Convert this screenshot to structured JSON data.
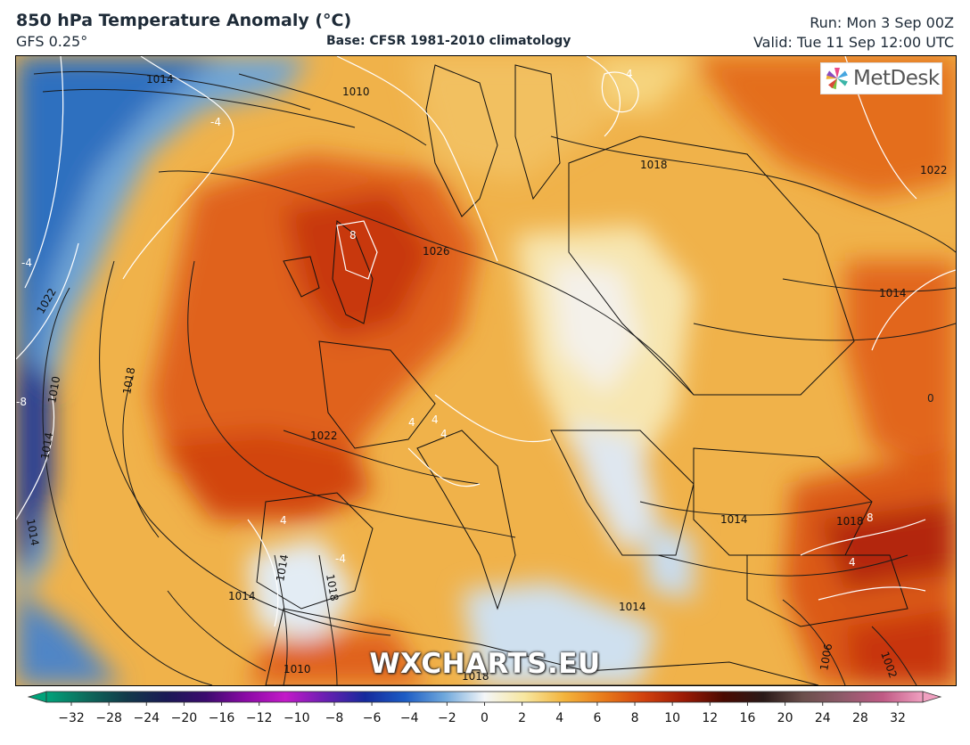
{
  "header": {
    "title": "850 hPa Temperature Anomaly (°C)",
    "model": "GFS 0.25°",
    "base": "Base: CFSR 1981-2010 climatology",
    "run": "Run: Mon 3 Sep 00Z",
    "valid": "Valid: Tue 11 Sep 12:00 UTC"
  },
  "logo": {
    "text": "MetDesk",
    "icon": "metdesk-pinwheel-logo"
  },
  "watermark": "WXCHARTS.EU",
  "map": {
    "isobar_labels": [
      "1014",
      "1010",
      "1026",
      "1022",
      "1018",
      "1014",
      "1022",
      "1018",
      "1014",
      "1022",
      "1018",
      "1014",
      "1010",
      "1014",
      "1018",
      "1014",
      "1014",
      "1006",
      "1002",
      "1010",
      "1014",
      "1018"
    ],
    "anomaly_labels": [
      "-4",
      "-4",
      "8",
      "4",
      "4",
      "4",
      "4",
      "4",
      "8",
      "4",
      "0",
      "-8",
      "-4"
    ]
  },
  "colorbar": {
    "ticks": [
      "−32",
      "−28",
      "−24",
      "−20",
      "−16",
      "−12",
      "−10",
      "−8",
      "−6",
      "−4",
      "−2",
      "0",
      "2",
      "4",
      "6",
      "8",
      "10",
      "12",
      "16",
      "20",
      "24",
      "28",
      "32"
    ],
    "colors": [
      "#00a37a",
      "#0d6b5c",
      "#123a4a",
      "#1a1a55",
      "#3b0b6e",
      "#8a0aa5",
      "#c31ac8",
      "#6a1fb2",
      "#152a9c",
      "#1c5cc4",
      "#6fa8dc",
      "#f4f6f8",
      "#f7e7a0",
      "#f3b43c",
      "#e87a1a",
      "#d1410d",
      "#9c1a05",
      "#4a0a02",
      "#2a1a18",
      "#6b4f4c",
      "#8f5a6a",
      "#c05a85",
      "#f0a0c0"
    ]
  }
}
